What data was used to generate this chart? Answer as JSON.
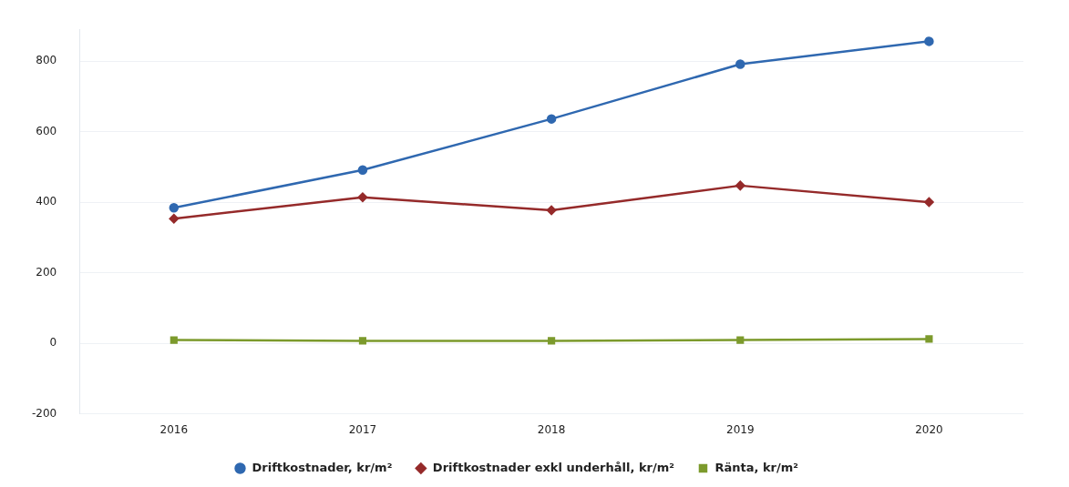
{
  "chart_data": {
    "type": "line",
    "categories": [
      "2016",
      "2017",
      "2018",
      "2019",
      "2020"
    ],
    "series": [
      {
        "name": "Driftkostnader, kr/m²",
        "color": "#2f68b0",
        "marker": "circle",
        "values": [
          384,
          491,
          636,
          791,
          856
        ]
      },
      {
        "name": "Driftkostnader exkl underhåll, kr/m²",
        "color": "#952a2a",
        "marker": "diamond",
        "values": [
          353,
          414,
          377,
          447,
          400
        ]
      },
      {
        "name": "Ränta, kr/m²",
        "color": "#7c9a2c",
        "marker": "square",
        "values": [
          9,
          7,
          7,
          9,
          12
        ]
      }
    ],
    "ylim": [
      -200,
      890
    ],
    "yticks": [
      -200,
      0,
      200,
      400,
      600,
      800
    ],
    "grid": "y",
    "legend": "bottom",
    "line_style": "solid"
  }
}
